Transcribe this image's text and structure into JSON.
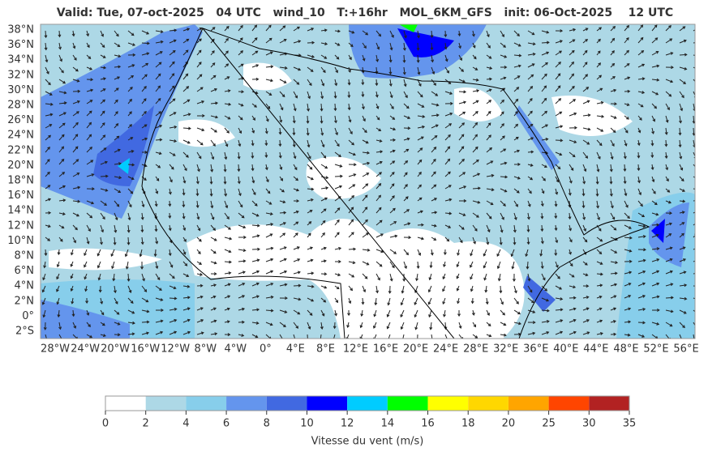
{
  "title": "Valid: Tue, 07-oct-2025   04 UTC   wind_10   T:+16hr   MOL_6KM_GFS   init: 06-Oct-2025    12 UTC",
  "map": {
    "lat_labels": [
      "38°N",
      "36°N",
      "34°N",
      "32°N",
      "30°N",
      "28°N",
      "26°N",
      "24°N",
      "22°N",
      "20°N",
      "18°N",
      "16°N",
      "14°N",
      "12°N",
      "10°N",
      "8°N",
      "6°N",
      "4°N",
      "2°N",
      "0°",
      "2°S"
    ],
    "lon_labels": [
      "28°W",
      "24°W",
      "20°W",
      "16°W",
      "12°W",
      "8°W",
      "4°W",
      "0°",
      "4°E",
      "8°E",
      "12°E",
      "16°E",
      "20°E",
      "24°E",
      "28°E",
      "32°E",
      "36°E",
      "40°E",
      "44°E",
      "48°E",
      "52°E",
      "56°E"
    ]
  },
  "colorbar": {
    "ticks": [
      0,
      2,
      4,
      6,
      8,
      10,
      12,
      14,
      16,
      18,
      20,
      25,
      30,
      35
    ],
    "colors": [
      "#ffffff",
      "#add8e6",
      "#87ceeb",
      "#6495ed",
      "#4169e1",
      "#0000ff",
      "#00ccff",
      "#00ff00",
      "#ffff00",
      "#ffd700",
      "#ffa500",
      "#ff4500",
      "#b22222"
    ],
    "label": "Vitesse du vent (m/s)"
  }
}
